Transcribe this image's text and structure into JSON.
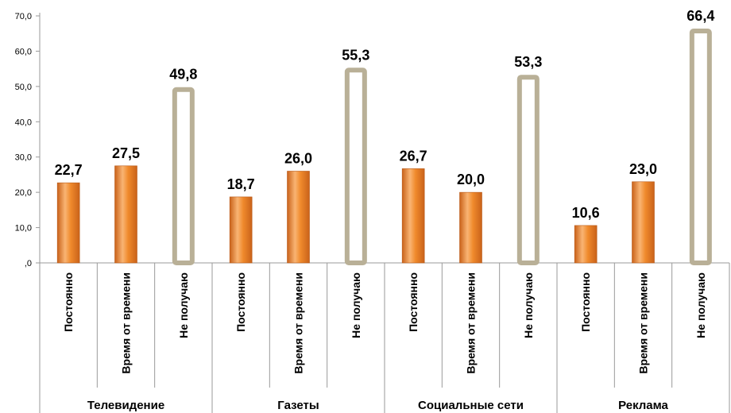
{
  "chart_data": {
    "type": "bar",
    "groups": [
      "Телевидение",
      "Газеты",
      "Социальные сети",
      "Реклама"
    ],
    "categories": [
      "Постоянно",
      "Время от времени",
      "Не получаю"
    ],
    "values": [
      [
        22.7,
        27.5,
        49.8
      ],
      [
        18.7,
        26.0,
        55.3
      ],
      [
        26.7,
        20.0,
        53.3
      ],
      [
        10.6,
        23.0,
        66.4
      ]
    ],
    "data_labels": [
      [
        "22,7",
        "27,5",
        "49,8"
      ],
      [
        "18,7",
        "26,0",
        "55,3"
      ],
      [
        "26,7",
        "20,0",
        "53,3"
      ],
      [
        "10,6",
        "23,0",
        "66,4"
      ]
    ],
    "y_ticks": [
      {
        "value": 0,
        "label": ",0"
      },
      {
        "value": 10,
        "label": "10,0"
      },
      {
        "value": 20,
        "label": "20,0"
      },
      {
        "value": 30,
        "label": "30,0"
      },
      {
        "value": 40,
        "label": "40,0"
      },
      {
        "value": 50,
        "label": "50,0"
      },
      {
        "value": 60,
        "label": "60,0"
      },
      {
        "value": 70,
        "label": "70,0"
      }
    ],
    "ylim": [
      0,
      70
    ],
    "grid": false,
    "colors": {
      "filled": "#F08A2C",
      "filled_dark": "#C9621A",
      "filled_light": "#F9B473",
      "outline": "#B9B097"
    }
  }
}
